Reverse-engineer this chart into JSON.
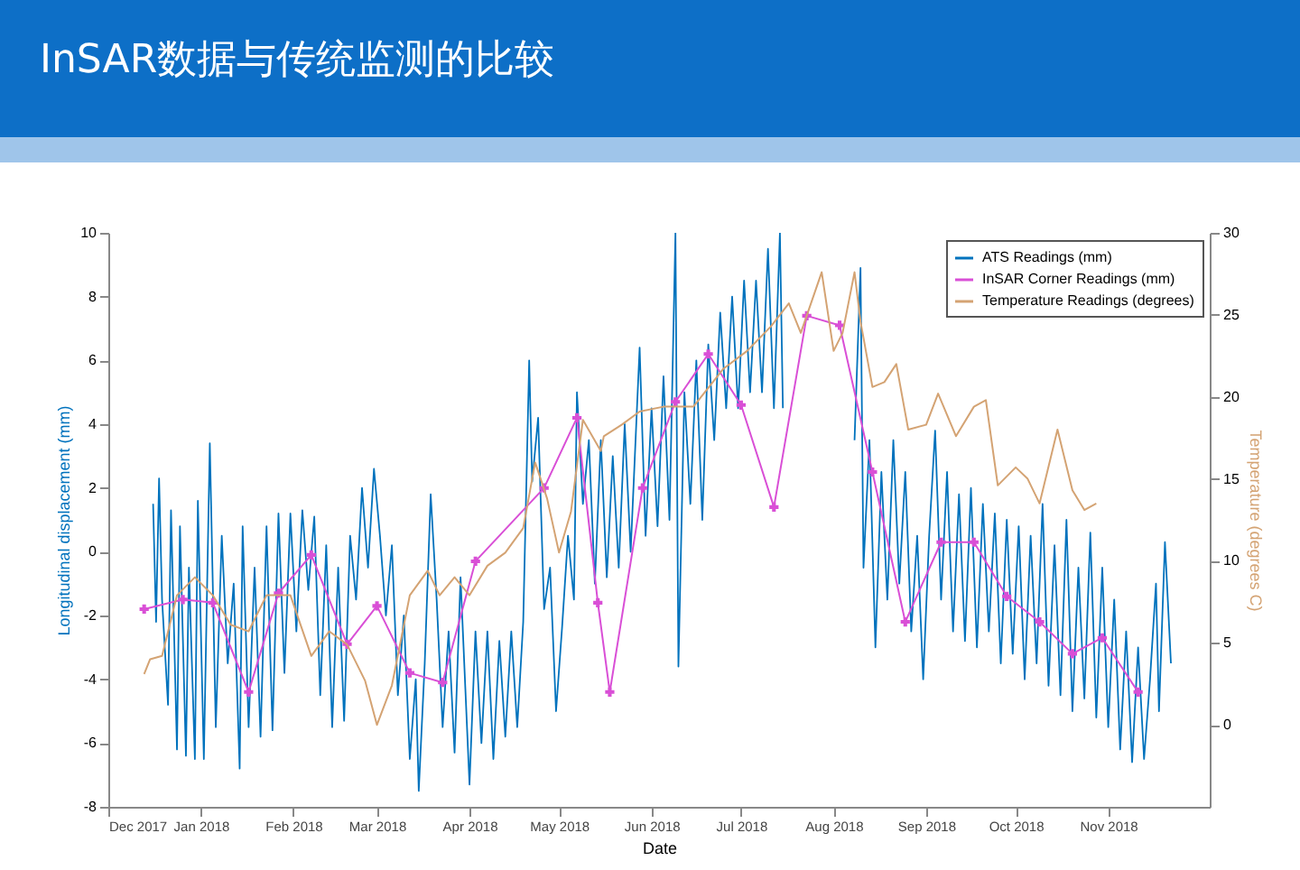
{
  "chart_data": {
    "type": "line",
    "title": "InSAR数据与传统监测的比较",
    "xlabel": "Date",
    "ylabel": "Longitudinal displacement (mm)",
    "y2label": "Temperature (degrees C)",
    "xlim": [
      "2017-12-01",
      "2018-12-05"
    ],
    "xticks": [
      {
        "value": "2017-12",
        "label": "Dec 2017"
      },
      {
        "value": "2018-01",
        "label": "Jan 2018"
      },
      {
        "value": "2018-02",
        "label": "Feb 2018"
      },
      {
        "value": "2018-03",
        "label": "Mar 2018"
      },
      {
        "value": "2018-04",
        "label": "Apr 2018"
      },
      {
        "value": "2018-05",
        "label": "May 2018"
      },
      {
        "value": "2018-06",
        "label": "Jun 2018"
      },
      {
        "value": "2018-07",
        "label": "Jul 2018"
      },
      {
        "value": "2018-08",
        "label": "Aug 2018"
      },
      {
        "value": "2018-09",
        "label": "Sep 2018"
      },
      {
        "value": "2018-10",
        "label": "Oct 2018"
      },
      {
        "value": "2018-11",
        "label": "Nov 2018"
      }
    ],
    "ylim": [
      -8,
      10
    ],
    "yticks": [
      -8,
      -6,
      -4,
      -2,
      0,
      2,
      4,
      6,
      8,
      10
    ],
    "y2lim": [
      -5,
      30
    ],
    "y2ticks": [
      0,
      5,
      10,
      15,
      20,
      25,
      30
    ],
    "grid": false,
    "legend": "top right",
    "series": [
      {
        "name": "ATS Readings (mm)",
        "color": "#0072bd",
        "marker": "none",
        "x": [
          "2017-12-16",
          "2017-12-17",
          "2017-12-18",
          "2017-12-19",
          "2017-12-21",
          "2017-12-22",
          "2017-12-24",
          "2017-12-25",
          "2017-12-27",
          "2017-12-28",
          "2017-12-30",
          "2017-12-31",
          "2018-01-02",
          "2018-01-04",
          "2018-01-06",
          "2018-01-08",
          "2018-01-10",
          "2018-01-12",
          "2018-01-14",
          "2018-01-15",
          "2018-01-17",
          "2018-01-19",
          "2018-01-21",
          "2018-01-23",
          "2018-01-25",
          "2018-01-27",
          "2018-01-29",
          "2018-01-31",
          "2018-02-02",
          "2018-02-04",
          "2018-02-06",
          "2018-02-08",
          "2018-02-10",
          "2018-02-12",
          "2018-02-14",
          "2018-02-16",
          "2018-02-18",
          "2018-02-20",
          "2018-02-22",
          "2018-02-24",
          "2018-02-26",
          "2018-02-28",
          "2018-03-02",
          "2018-03-04",
          "2018-03-06",
          "2018-03-08",
          "2018-03-10",
          "2018-03-12",
          "2018-03-14",
          "2018-03-15",
          "2018-03-17",
          "2018-03-19",
          "2018-03-21",
          "2018-03-23",
          "2018-03-25",
          "2018-03-27",
          "2018-03-29",
          "2018-04-01",
          "2018-04-03",
          "2018-04-05",
          "2018-04-07",
          "2018-04-09",
          "2018-04-11",
          "2018-04-13",
          "2018-04-15",
          "2018-04-17",
          "2018-04-19",
          "2018-04-21",
          "2018-04-22",
          "2018-04-24",
          "2018-04-26",
          "2018-04-28",
          "2018-04-30",
          "2018-05-02",
          "2018-05-04",
          "2018-05-06",
          "2018-05-07",
          "2018-05-09",
          "2018-05-11",
          "2018-05-13",
          "2018-05-15",
          "2018-05-17",
          "2018-05-19",
          "2018-05-21",
          "2018-05-23",
          "2018-05-25",
          "2018-05-28",
          "2018-05-30",
          "2018-06-01",
          "2018-06-03",
          "2018-06-05",
          "2018-06-07",
          "2018-06-09",
          "2018-06-10",
          "2018-06-12",
          "2018-06-14",
          "2018-06-16",
          "2018-06-18",
          "2018-06-20",
          "2018-06-22",
          "2018-06-24",
          "2018-06-26",
          "2018-06-28",
          "2018-06-30",
          "2018-07-02",
          "2018-07-04",
          "2018-07-06",
          "2018-07-08",
          "2018-07-10",
          "2018-07-12",
          "2018-07-14",
          "2018-07-15",
          "2018-07-16",
          "2018-08-08",
          "2018-08-10",
          "2018-08-11",
          "2018-08-13",
          "2018-08-15",
          "2018-08-17",
          "2018-08-19",
          "2018-08-21",
          "2018-08-23",
          "2018-08-25",
          "2018-08-27",
          "2018-08-29",
          "2018-08-31",
          "2018-09-02",
          "2018-09-04",
          "2018-09-06",
          "2018-09-08",
          "2018-09-10",
          "2018-09-12",
          "2018-09-14",
          "2018-09-16",
          "2018-09-18",
          "2018-09-20",
          "2018-09-22",
          "2018-09-24",
          "2018-09-26",
          "2018-09-28",
          "2018-09-30",
          "2018-10-02",
          "2018-10-04",
          "2018-10-06",
          "2018-10-08",
          "2018-10-10",
          "2018-10-12",
          "2018-10-14",
          "2018-10-16",
          "2018-10-18",
          "2018-10-20",
          "2018-10-22",
          "2018-10-24",
          "2018-10-26",
          "2018-10-28",
          "2018-10-30",
          "2018-11-01",
          "2018-11-03",
          "2018-11-05",
          "2018-11-07",
          "2018-11-09",
          "2018-11-11",
          "2018-11-13",
          "2018-11-15",
          "2018-11-17",
          "2018-11-18",
          "2018-11-20",
          "2018-11-22"
        ],
        "values": [
          1.5,
          -2.2,
          2.3,
          -1.5,
          -4.8,
          1.3,
          -6.2,
          0.8,
          -6.4,
          -0.5,
          -6.5,
          1.6,
          -6.5,
          3.4,
          -5.5,
          0.5,
          -3.5,
          -1,
          -6.8,
          0.8,
          -5.5,
          -0.5,
          -5.8,
          0.8,
          -5.6,
          1.2,
          -3.8,
          1.2,
          -2.5,
          1.3,
          -1.2,
          1.1,
          -4.5,
          0.2,
          -5.5,
          -0.5,
          -5.3,
          0.5,
          -1.5,
          2,
          -0.5,
          2.6,
          0.5,
          -2,
          0.2,
          -4.5,
          -2,
          -6.5,
          -4,
          -7.5,
          -3.5,
          1.8,
          -1.5,
          -5.5,
          -2.5,
          -6.3,
          -0.8,
          -7.3,
          -2.5,
          -6,
          -2.5,
          -6.5,
          -2.8,
          -5.8,
          -2.5,
          -5.5,
          -2.2,
          6,
          2.2,
          4.2,
          -1.8,
          -0.5,
          -5,
          -2.4,
          0.5,
          -1.5,
          5,
          1.5,
          3.5,
          -1,
          3.5,
          -0.8,
          3,
          -0.5,
          4,
          0,
          6.4,
          0.5,
          4.5,
          0.8,
          5.5,
          1,
          10,
          -3.6,
          5,
          1.5,
          6,
          1,
          6.5,
          3.5,
          7.5,
          4.5,
          8,
          4.5,
          8.5,
          5,
          8.5,
          5,
          9.5,
          4.5,
          10,
          4.5,
          null,
          3.5,
          8.9,
          -0.5,
          3.5,
          -3,
          2.5,
          -1.5,
          3.5,
          -1,
          2.5,
          -2.5,
          0.5,
          -4,
          0.5,
          3.8,
          -1.5,
          2.5,
          -2.5,
          1.8,
          -2.8,
          2,
          -3,
          1.5,
          -2.5,
          1.2,
          -3.5,
          1,
          -3.2,
          0.8,
          -4,
          0.5,
          -3.5,
          1.5,
          -4.2,
          0.2,
          -4.5,
          1,
          -5,
          -0.5,
          -4.6,
          0.6,
          -5.2,
          -0.5,
          -5.5,
          -1.5,
          -6.2,
          -2.5,
          -6.6,
          -3,
          -6.5,
          -4,
          -1,
          -5,
          0.3,
          -3.5
        ]
      },
      {
        "name": "InSAR Corner Readings (mm)",
        "color": "#d94fd6",
        "marker": "cross",
        "x": [
          "2017-12-13",
          "2017-12-26",
          "2018-01-05",
          "2018-01-17",
          "2018-01-27",
          "2018-02-07",
          "2018-02-19",
          "2018-03-01",
          "2018-03-12",
          "2018-03-23",
          "2018-04-03",
          "2018-04-26",
          "2018-05-07",
          "2018-05-14",
          "2018-05-18",
          "2018-05-29",
          "2018-06-09",
          "2018-06-20",
          "2018-07-01",
          "2018-07-12",
          "2018-07-23",
          "2018-08-03",
          "2018-08-14",
          "2018-08-25",
          "2018-09-06",
          "2018-09-17",
          "2018-09-28",
          "2018-10-09",
          "2018-10-20",
          "2018-10-30",
          "2018-11-11"
        ],
        "values": [
          -1.8,
          -1.5,
          -1.6,
          -4.4,
          -1.3,
          -0.1,
          -2.9,
          -1.7,
          -3.8,
          -4.1,
          -0.3,
          2,
          4.2,
          -1.6,
          -4.4,
          2,
          4.7,
          6.2,
          4.6,
          1.4,
          7.4,
          7.1,
          2.5,
          -2.2,
          0.3,
          0.3,
          -1.4,
          -2.2,
          -3.2,
          -2.7,
          -4.4
        ]
      },
      {
        "name": "Temperature Readings (degrees)",
        "color": "#d4a373",
        "marker": "none",
        "axis": "y2",
        "x": [
          "2017-12-13",
          "2017-12-15",
          "2017-12-19",
          "2017-12-24",
          "2017-12-30",
          "2018-01-05",
          "2018-01-11",
          "2018-01-17",
          "2018-01-23",
          "2018-01-31",
          "2018-02-07",
          "2018-02-13",
          "2018-02-19",
          "2018-02-25",
          "2018-03-01",
          "2018-03-06",
          "2018-03-12",
          "2018-03-18",
          "2018-03-22",
          "2018-03-27",
          "2018-04-01",
          "2018-04-07",
          "2018-04-13",
          "2018-04-19",
          "2018-04-23",
          "2018-04-27",
          "2018-05-01",
          "2018-05-05",
          "2018-05-09",
          "2018-05-15",
          "2018-05-16",
          "2018-05-22",
          "2018-05-28",
          "2018-06-05",
          "2018-06-15",
          "2018-06-25",
          "2018-07-03",
          "2018-07-11",
          "2018-07-17",
          "2018-07-21",
          "2018-07-28",
          "2018-08-01",
          "2018-08-04",
          "2018-08-08",
          "2018-08-10",
          "2018-08-14",
          "2018-08-18",
          "2018-08-22",
          "2018-08-26",
          "2018-09-01",
          "2018-09-05",
          "2018-09-11",
          "2018-09-17",
          "2018-09-21",
          "2018-09-25",
          "2018-10-01",
          "2018-10-05",
          "2018-10-09",
          "2018-10-15",
          "2018-10-20",
          "2018-10-24",
          "2018-10-28"
        ],
        "values": [
          3.1,
          4,
          4.2,
          7.9,
          9,
          7.9,
          6.1,
          5.7,
          7.9,
          7.9,
          4.2,
          5.7,
          4.9,
          2.7,
          0,
          2.4,
          7.9,
          9.4,
          7.9,
          9,
          7.9,
          9.7,
          10.5,
          12,
          16,
          13.8,
          10.5,
          13,
          18.6,
          16.7,
          17.6,
          18.3,
          19.1,
          19.4,
          19.4,
          21.7,
          22.8,
          24.3,
          25.7,
          23.9,
          27.6,
          22.8,
          23.9,
          27.6,
          24.6,
          20.6,
          20.9,
          22,
          18,
          18.3,
          20.2,
          17.6,
          19.4,
          19.8,
          14.6,
          15.7,
          15,
          13.5,
          18,
          14.3,
          13.1,
          13.5
        ]
      }
    ]
  }
}
